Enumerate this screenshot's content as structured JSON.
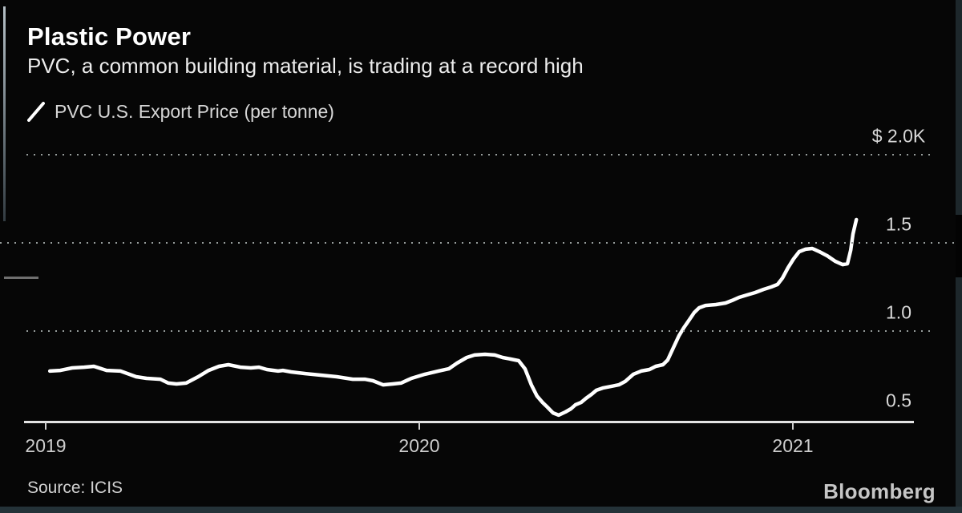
{
  "header": {
    "title": "Plastic Power",
    "subtitle": "PVC, a common building material, is trading at a record high"
  },
  "legend": {
    "label": "PVC U.S. Export Price (per tonne)",
    "marker": "diagonal-line-icon"
  },
  "footer": {
    "source": "Source: ICIS",
    "brand": "Bloomberg"
  },
  "colors": {
    "background": "#060606",
    "line": "#ffffff",
    "grid": "#969c9b",
    "axis": "#e3e3e3",
    "tick": "#cfcfcf",
    "title_text": "#ffffff",
    "secondary_text": "#d6d6d6"
  },
  "chart_data": {
    "type": "line",
    "title": "Plastic Power",
    "subtitle": "PVC, a common building material, is trading at a record high",
    "unit": "USD thousands per tonne",
    "x_range": [
      2018.942,
      2021.324
    ],
    "y_range": [
      0.5,
      2.0
    ],
    "grid": "horizontal-dotted",
    "legend_position": "top-left",
    "x_ticks": [
      {
        "value": 2019,
        "label": "2019"
      },
      {
        "value": 2020,
        "label": "2020"
      },
      {
        "value": 2021,
        "label": "2021"
      }
    ],
    "y_ticks": [
      {
        "value": 2.0,
        "label": "$ 2.0K",
        "grid": "plot"
      },
      {
        "value": 1.5,
        "label": "1.5",
        "grid": "full"
      },
      {
        "value": 1.0,
        "label": "1.0",
        "grid": "plot"
      },
      {
        "value": 0.5,
        "label": "0.5",
        "grid": "none"
      }
    ],
    "series": [
      {
        "name": "PVC U.S. Export Price (per tonne)",
        "points": [
          [
            2019.011,
            0.773
          ],
          [
            2019.039,
            0.777
          ],
          [
            2019.071,
            0.791
          ],
          [
            2019.103,
            0.795
          ],
          [
            2019.129,
            0.8
          ],
          [
            2019.163,
            0.777
          ],
          [
            2019.2,
            0.773
          ],
          [
            2019.242,
            0.741
          ],
          [
            2019.27,
            0.732
          ],
          [
            2019.307,
            0.727
          ],
          [
            2019.328,
            0.705
          ],
          [
            2019.35,
            0.7
          ],
          [
            2019.376,
            0.705
          ],
          [
            2019.408,
            0.741
          ],
          [
            2019.436,
            0.777
          ],
          [
            2019.464,
            0.8
          ],
          [
            2019.489,
            0.809
          ],
          [
            2019.521,
            0.795
          ],
          [
            2019.549,
            0.791
          ],
          [
            2019.571,
            0.795
          ],
          [
            2019.592,
            0.782
          ],
          [
            2019.622,
            0.773
          ],
          [
            2019.635,
            0.777
          ],
          [
            2019.657,
            0.768
          ],
          [
            2019.693,
            0.759
          ],
          [
            2019.736,
            0.75
          ],
          [
            2019.779,
            0.741
          ],
          [
            2019.822,
            0.727
          ],
          [
            2019.854,
            0.727
          ],
          [
            2019.876,
            0.718
          ],
          [
            2019.903,
            0.695
          ],
          [
            2019.929,
            0.7
          ],
          [
            2019.951,
            0.705
          ],
          [
            2019.979,
            0.732
          ],
          [
            2020.015,
            0.755
          ],
          [
            2020.051,
            0.773
          ],
          [
            2020.079,
            0.786
          ],
          [
            2020.101,
            0.818
          ],
          [
            2020.127,
            0.85
          ],
          [
            2020.148,
            0.864
          ],
          [
            2020.176,
            0.868
          ],
          [
            2020.202,
            0.864
          ],
          [
            2020.223,
            0.85
          ],
          [
            2020.245,
            0.841
          ],
          [
            2020.266,
            0.832
          ],
          [
            2020.283,
            0.786
          ],
          [
            2020.3,
            0.695
          ],
          [
            2020.315,
            0.632
          ],
          [
            2020.33,
            0.595
          ],
          [
            2020.343,
            0.568
          ],
          [
            2020.358,
            0.536
          ],
          [
            2020.373,
            0.523
          ],
          [
            2020.391,
            0.541
          ],
          [
            2020.406,
            0.559
          ],
          [
            2020.418,
            0.582
          ],
          [
            2020.433,
            0.595
          ],
          [
            2020.446,
            0.618
          ],
          [
            2020.461,
            0.641
          ],
          [
            2020.474,
            0.664
          ],
          [
            2020.491,
            0.677
          ],
          [
            2020.513,
            0.686
          ],
          [
            2020.534,
            0.695
          ],
          [
            2020.551,
            0.714
          ],
          [
            2020.573,
            0.755
          ],
          [
            2020.594,
            0.773
          ],
          [
            2020.616,
            0.782
          ],
          [
            2020.633,
            0.8
          ],
          [
            2020.652,
            0.809
          ],
          [
            2020.665,
            0.836
          ],
          [
            2020.68,
            0.905
          ],
          [
            2020.695,
            0.973
          ],
          [
            2020.708,
            1.018
          ],
          [
            2020.723,
            1.064
          ],
          [
            2020.736,
            1.105
          ],
          [
            2020.749,
            1.132
          ],
          [
            2020.766,
            1.145
          ],
          [
            2020.794,
            1.15
          ],
          [
            2020.82,
            1.159
          ],
          [
            2020.837,
            1.173
          ],
          [
            2020.856,
            1.191
          ],
          [
            2020.878,
            1.205
          ],
          [
            2020.899,
            1.218
          ],
          [
            2020.921,
            1.236
          ],
          [
            2020.942,
            1.25
          ],
          [
            2020.959,
            1.264
          ],
          [
            2020.972,
            1.3
          ],
          [
            2020.987,
            1.359
          ],
          [
            2021.002,
            1.409
          ],
          [
            2021.017,
            1.45
          ],
          [
            2021.034,
            1.464
          ],
          [
            2021.052,
            1.468
          ],
          [
            2021.071,
            1.45
          ],
          [
            2021.092,
            1.427
          ],
          [
            2021.114,
            1.395
          ],
          [
            2021.133,
            1.377
          ],
          [
            2021.146,
            1.382
          ],
          [
            2021.155,
            1.459
          ],
          [
            2021.161,
            1.55
          ],
          [
            2021.17,
            1.632
          ]
        ]
      }
    ]
  }
}
